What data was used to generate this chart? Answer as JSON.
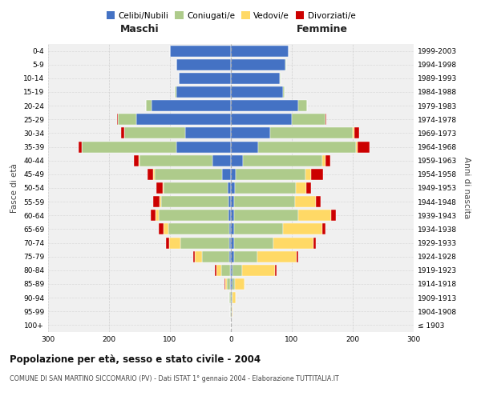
{
  "age_groups": [
    "100+",
    "95-99",
    "90-94",
    "85-89",
    "80-84",
    "75-79",
    "70-74",
    "65-69",
    "60-64",
    "55-59",
    "50-54",
    "45-49",
    "40-44",
    "35-39",
    "30-34",
    "25-29",
    "20-24",
    "15-19",
    "10-14",
    "5-9",
    "0-4"
  ],
  "birth_years": [
    "≤ 1903",
    "1904-1908",
    "1909-1913",
    "1914-1918",
    "1919-1923",
    "1924-1928",
    "1929-1933",
    "1934-1938",
    "1939-1943",
    "1944-1948",
    "1949-1953",
    "1954-1958",
    "1959-1963",
    "1964-1968",
    "1969-1973",
    "1974-1978",
    "1979-1983",
    "1984-1988",
    "1989-1993",
    "1994-1998",
    "1999-2003"
  ],
  "male_celibi": [
    0,
    0,
    0,
    1,
    1,
    2,
    3,
    3,
    4,
    4,
    5,
    15,
    30,
    90,
    75,
    155,
    130,
    90,
    85,
    90,
    100
  ],
  "male_coniugati": [
    0,
    1,
    2,
    5,
    15,
    45,
    80,
    100,
    115,
    110,
    105,
    110,
    120,
    155,
    100,
    30,
    10,
    2,
    0,
    0,
    0
  ],
  "male_vedovi": [
    0,
    0,
    1,
    3,
    8,
    12,
    18,
    8,
    5,
    3,
    2,
    2,
    1,
    0,
    0,
    0,
    0,
    0,
    0,
    0,
    0
  ],
  "male_divorziati": [
    0,
    0,
    0,
    1,
    2,
    3,
    5,
    8,
    8,
    10,
    10,
    10,
    8,
    5,
    5,
    2,
    0,
    0,
    0,
    0,
    0
  ],
  "female_nubili": [
    0,
    1,
    1,
    2,
    3,
    5,
    5,
    5,
    5,
    5,
    6,
    8,
    20,
    45,
    65,
    100,
    110,
    85,
    80,
    90,
    95
  ],
  "female_coniugate": [
    0,
    0,
    2,
    5,
    15,
    38,
    65,
    80,
    105,
    100,
    100,
    115,
    130,
    160,
    135,
    55,
    15,
    3,
    2,
    1,
    0
  ],
  "female_vedove": [
    0,
    2,
    5,
    15,
    55,
    65,
    65,
    65,
    55,
    35,
    18,
    8,
    5,
    3,
    2,
    0,
    0,
    0,
    0,
    0,
    0
  ],
  "female_divorziate": [
    0,
    0,
    0,
    0,
    2,
    3,
    5,
    5,
    8,
    8,
    8,
    20,
    8,
    20,
    8,
    2,
    0,
    0,
    0,
    0,
    0
  ],
  "color_celibi": "#4472C4",
  "color_coniugati": "#AECB8B",
  "color_vedovi": "#FFD966",
  "color_divorziati": "#CC0000",
  "title": "Popolazione per età, sesso e stato civile - 2004",
  "subtitle": "COMUNE DI SAN MARTINO SICCOMARIO (PV) - Dati ISTAT 1° gennaio 2004 - Elaborazione TUTTITALIA.IT",
  "xlim": 300,
  "legend_labels": [
    "Celibi/Nubili",
    "Coniugati/e",
    "Vedovi/e",
    "Divorziati/e"
  ],
  "header_maschi": "Maschi",
  "header_femmine": "Femmine",
  "ylabel_left": "Fasce di età",
  "ylabel_right": "Anni di nascita"
}
